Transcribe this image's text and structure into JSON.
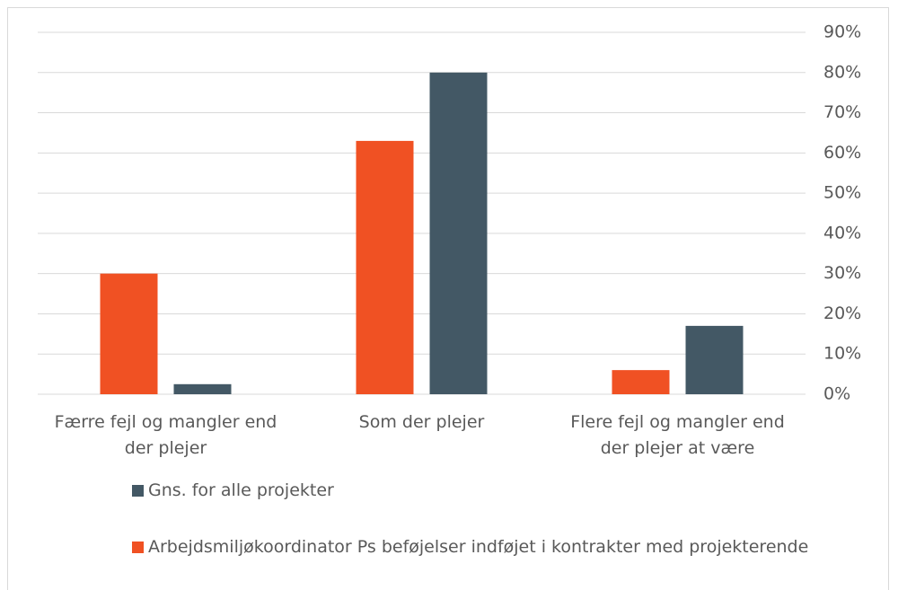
{
  "chart_data": {
    "type": "bar",
    "categories": [
      "Færre fejl og mangler end der plejer",
      "Som der plejer",
      "Flere fejl og mangler end der plejer at være"
    ],
    "series": [
      {
        "name": "Arbejdsmiljøkoordinator Ps beføjelser indføjet i kontrakter med projekterende",
        "color": "#f05123",
        "values": [
          30,
          63,
          6
        ]
      },
      {
        "name": "Gns. for alle projekter",
        "color": "#435865",
        "values": [
          2.5,
          80,
          17
        ]
      }
    ],
    "ylim": [
      0,
      90
    ],
    "yticks": [
      {
        "value": 0,
        "label": "0%"
      },
      {
        "value": 10,
        "label": "10%"
      },
      {
        "value": 20,
        "label": "20%"
      },
      {
        "value": 30,
        "label": "30%"
      },
      {
        "value": 40,
        "label": "40%"
      },
      {
        "value": 50,
        "label": "50%"
      },
      {
        "value": 60,
        "label": "60%"
      },
      {
        "value": 70,
        "label": "70%"
      },
      {
        "value": 80,
        "label": "80%"
      },
      {
        "value": 90,
        "label": "90%"
      }
    ],
    "grid": true,
    "y_axis_side": "right",
    "legend": "bottom"
  }
}
